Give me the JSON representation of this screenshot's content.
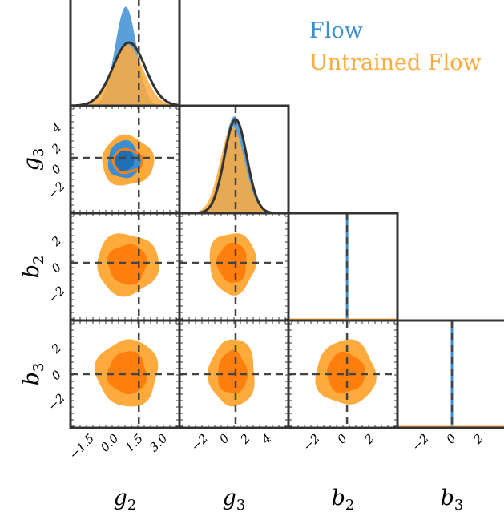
{
  "chart_data": {
    "type": "corner",
    "parameters": [
      {
        "name": "g2",
        "label_base": "g",
        "label_sub": "2",
        "range": [
          -2.7,
          4.0
        ],
        "ticks": [
          "−1.5",
          "0.0",
          "1.5",
          "3.0"
        ],
        "tick_values": [
          -1.5,
          0.0,
          1.5,
          3.0
        ],
        "truth": 1.5
      },
      {
        "name": "g3",
        "label_base": "g",
        "label_sub": "3",
        "range": [
          -4.3,
          6.0
        ],
        "ticks": [
          "−2",
          "0",
          "2",
          "4"
        ],
        "tick_values": [
          -2,
          0,
          2,
          4
        ],
        "truth": 1.0
      },
      {
        "name": "b2",
        "label_base": "b",
        "label_sub": "2",
        "range": [
          -4.0,
          4.0
        ],
        "ticks": [
          "−2",
          "0",
          "2"
        ],
        "tick_values": [
          -2,
          0,
          2
        ],
        "truth": 0.3
      },
      {
        "name": "b3",
        "label_base": "b",
        "label_sub": "3",
        "range": [
          -4.0,
          4.0
        ],
        "ticks": [
          "−2",
          "0",
          "2"
        ],
        "tick_values": [
          -2,
          0,
          2
        ],
        "truth": 0.0
      }
    ],
    "series": [
      {
        "name": "Flow",
        "color": "#3c8ed2",
        "color_inner": "#1e6fb5",
        "marginals": [
          {
            "type": "gaussian",
            "mean": 0.7,
            "sd": 0.65,
            "peak": 0.97
          },
          {
            "type": "gaussian",
            "mean": 0.9,
            "sd": 1.1,
            "peak": 0.95
          },
          {
            "type": "spike",
            "at": 0.3
          },
          {
            "type": "spike",
            "at": 0.0
          }
        ],
        "contours": [
          {
            "pair": [
              "g2",
              "g3"
            ],
            "center": [
              0.6,
              0.8
            ],
            "outer_radius": [
              1.0,
              1.8
            ],
            "inner_radius": [
              0.6,
              1.1
            ]
          }
        ]
      },
      {
        "name": "Untrained Flow",
        "color": "#ffaa3c",
        "color_inner": "#ff7f0e",
        "marginals": [
          {
            "type": "gaussian",
            "mean": 0.8,
            "sd": 0.95,
            "peak": 0.6
          },
          {
            "type": "gaussian",
            "mean": 0.7,
            "sd": 1.15,
            "peak": 0.85
          },
          {
            "type": "flat"
          },
          {
            "type": "flat"
          }
        ],
        "contours": [
          {
            "pair": [
              "g2",
              "g3"
            ],
            "center": [
              0.8,
              0.7
            ],
            "outer_radius": [
              1.6,
              2.4
            ],
            "inner_radius": [
              0.9,
              1.1
            ]
          },
          {
            "pair": [
              "g2",
              "b2"
            ],
            "center": [
              0.8,
              0.2
            ],
            "outer_radius": [
              1.9,
              2.3
            ],
            "inner_radius": [
              1.2,
              1.5
            ]
          },
          {
            "pair": [
              "g3",
              "b2"
            ],
            "center": [
              0.7,
              0.3
            ],
            "outer_radius": [
              2.2,
              2.3
            ],
            "inner_radius": [
              1.4,
              1.5
            ]
          },
          {
            "pair": [
              "g2",
              "b3"
            ],
            "center": [
              0.8,
              0.1
            ],
            "outer_radius": [
              1.9,
              2.5
            ],
            "inner_radius": [
              1.2,
              1.6
            ]
          },
          {
            "pair": [
              "g3",
              "b3"
            ],
            "center": [
              0.7,
              0.1
            ],
            "outer_radius": [
              2.2,
              2.5
            ],
            "inner_radius": [
              1.4,
              1.6
            ]
          },
          {
            "pair": [
              "b2",
              "b3"
            ],
            "center": [
              0.2,
              0.1
            ],
            "outer_radius": [
              2.2,
              2.4
            ],
            "inner_radius": [
              1.4,
              1.5
            ]
          }
        ]
      },
      {
        "name": "",
        "color": "#333333",
        "marginals": [
          {
            "type": "gaussian",
            "mean": 0.9,
            "sd": 1.0,
            "peak": 0.62
          },
          {
            "type": "gaussian",
            "mean": 1.0,
            "sd": 1.05,
            "peak": 0.92
          },
          {
            "type": "none"
          },
          {
            "type": "none"
          }
        ]
      }
    ],
    "legend": {
      "placement": "top-right",
      "entries": [
        "Flow",
        "Untrained Flow"
      ]
    }
  }
}
